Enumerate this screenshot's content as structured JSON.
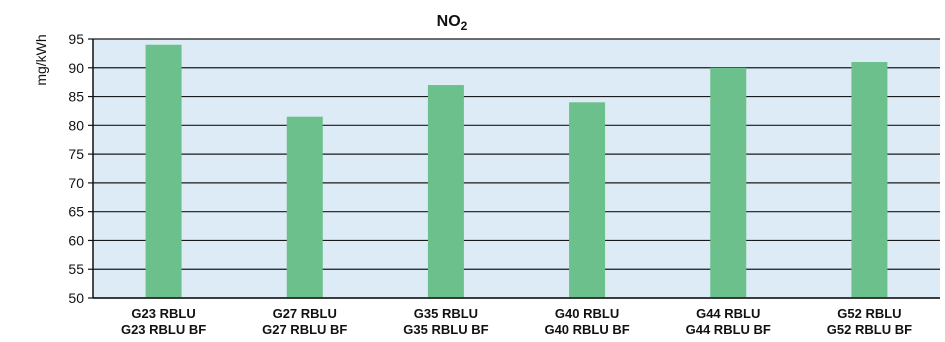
{
  "chart_data": {
    "type": "bar",
    "title": "NO",
    "title_subscript": "2",
    "ylabel": "mg/kWh",
    "xlabel": "",
    "categories": [
      [
        "G23 RBLU",
        "G23 RBLU BF"
      ],
      [
        "G27 RBLU",
        "G27 RBLU BF"
      ],
      [
        "G35 RBLU",
        "G35 RBLU BF"
      ],
      [
        "G40 RBLU",
        "G40 RBLU BF"
      ],
      [
        "G44 RBLU",
        "G44 RBLU BF"
      ],
      [
        "G52 RBLU",
        "G52 RBLU BF"
      ]
    ],
    "values": [
      94,
      81.5,
      87,
      84,
      90,
      91
    ],
    "ylim": [
      50,
      95
    ],
    "yticks": [
      50,
      55,
      60,
      65,
      70,
      75,
      80,
      85,
      90,
      95
    ],
    "grid": true,
    "colors": {
      "plot_background": "#dcebf5",
      "bar": "#6cc08b",
      "grid": "#1a1a1a"
    }
  }
}
